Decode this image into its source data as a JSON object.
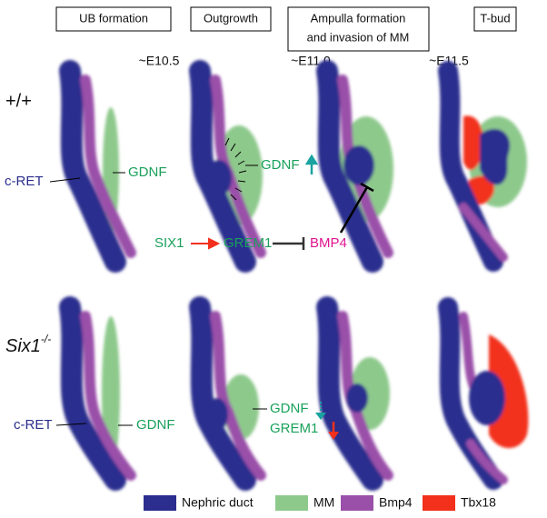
{
  "stages": [
    {
      "lines": [
        "UB formation"
      ]
    },
    {
      "lines": [
        "Outgrowth"
      ]
    },
    {
      "lines": [
        "Ampulla formation",
        "and invasion of MM"
      ]
    },
    {
      "lines": [
        "T-bud"
      ]
    }
  ],
  "times": [
    "~E10.5",
    "~E11.0",
    "~E11.5"
  ],
  "rows": [
    {
      "genotype": "+/+"
    },
    {
      "genotype": "Six1",
      "superscript": "-/-"
    }
  ],
  "annotations": {
    "top": {
      "cret": "c-RET",
      "gdnf": "GDNF",
      "gdnf2": "GDNF",
      "six1": "SIX1",
      "grem1": "GREM1",
      "bmp4": "BMP4"
    },
    "bottom": {
      "cret": "c-RET",
      "gdnf": "GDNF",
      "gdnf2": "GDNF",
      "grem1": "GREM1"
    }
  },
  "legend": [
    {
      "label": "Nephric duct",
      "color": "#2b2e8e"
    },
    {
      "label": "MM",
      "color": "#8ec98c"
    },
    {
      "label": "Bmp4",
      "color": "#9a50a9"
    },
    {
      "label": "Tbx18",
      "color": "#f2301c"
    }
  ]
}
